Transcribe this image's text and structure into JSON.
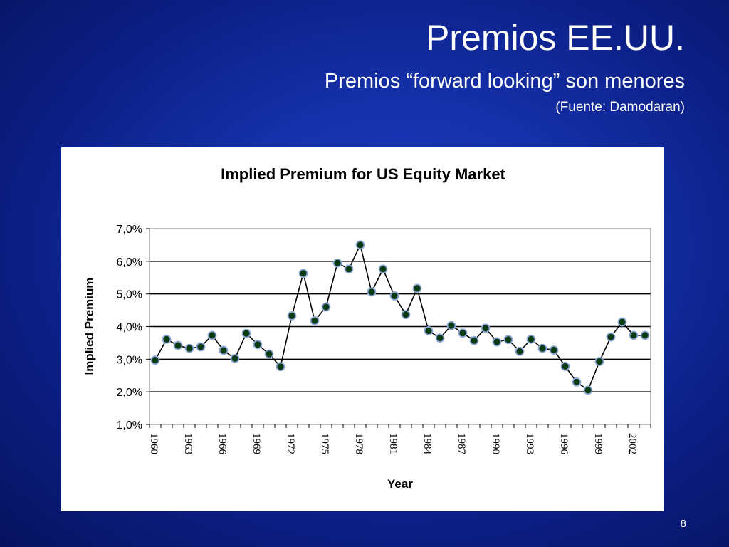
{
  "slide": {
    "title": "Premios EE.UU.",
    "subtitle": "Premios “forward looking” son menores",
    "source": "(Fuente: Damodaran)",
    "page_number": "8"
  },
  "chart_data": {
    "type": "line",
    "title": "Implied Premium for US Equity Market",
    "xlabel": "Year",
    "ylabel": "Implied Premium",
    "ylim": [
      0.01,
      0.07
    ],
    "yticks": [
      0.01,
      0.02,
      0.03,
      0.04,
      0.05,
      0.06,
      0.07
    ],
    "ytick_labels": [
      "1,0%",
      "2,0%",
      "3,0%",
      "4,0%",
      "5,0%",
      "6,0%",
      "7,0%"
    ],
    "xtick_labels": [
      "1960",
      "1963",
      "1966",
      "1969",
      "1972",
      "1975",
      "1978",
      "1981",
      "1984",
      "1987",
      "1990",
      "1993",
      "1996",
      "1999",
      "2002"
    ],
    "x": [
      1960,
      1961,
      1962,
      1963,
      1964,
      1965,
      1966,
      1967,
      1968,
      1969,
      1970,
      1971,
      1972,
      1973,
      1974,
      1975,
      1976,
      1977,
      1978,
      1979,
      1980,
      1981,
      1982,
      1983,
      1984,
      1985,
      1986,
      1987,
      1988,
      1989,
      1990,
      1991,
      1992,
      1993,
      1994,
      1995,
      1996,
      1997,
      1998,
      1999,
      2000,
      2001,
      2002,
      2003
    ],
    "values": [
      0.0297,
      0.0361,
      0.0342,
      0.0333,
      0.0338,
      0.0373,
      0.0327,
      0.0302,
      0.0379,
      0.0345,
      0.0316,
      0.0277,
      0.0433,
      0.0563,
      0.0418,
      0.046,
      0.0595,
      0.0576,
      0.065,
      0.0506,
      0.0576,
      0.0494,
      0.0437,
      0.0517,
      0.0387,
      0.0365,
      0.0403,
      0.038,
      0.0357,
      0.0395,
      0.0353,
      0.036,
      0.0324,
      0.0361,
      0.0333,
      0.0328,
      0.0278,
      0.023,
      0.0205,
      0.0293,
      0.0368,
      0.0414,
      0.0373,
      0.0373
    ],
    "grid": true,
    "legend": "none",
    "line_color": "#000000",
    "marker_fill": "#0a3a12",
    "marker_edge": "#8fa6d8"
  }
}
